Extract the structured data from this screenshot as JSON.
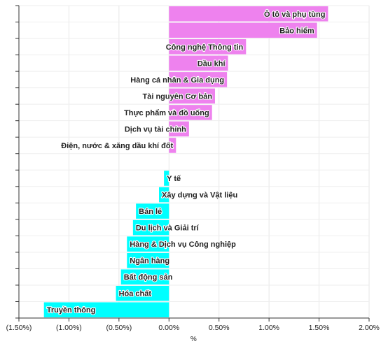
{
  "chart_data": {
    "type": "bar",
    "orientation": "horizontal",
    "xlabel": "%",
    "ylabel": "",
    "xlim": [
      -1.5,
      2.0
    ],
    "x_ticks": [
      -1.5,
      -1.0,
      -0.5,
      0.0,
      0.5,
      1.0,
      1.5,
      2.0
    ],
    "x_tick_labels": [
      "(1.50%)",
      "(1.00%)",
      "(0.50%)",
      "0.00%",
      "0.50%",
      "1.00%",
      "1.50%",
      "2.00%"
    ],
    "grid": true,
    "positive_color": "#ee82ee",
    "negative_color": "#00ffff",
    "categories": [
      "Ô tô và phụ tùng",
      "Bảo hiểm",
      "Công nghệ Thông tin",
      "Dầu khí",
      "Hàng cá nhân & Gia dụng",
      "Tài nguyên Cơ bản",
      "Thực phẩm và đồ uống",
      "Dịch vụ tài chính",
      "Điện, nước & xăng dầu khí đốt",
      "",
      "Y tế",
      "Xây dựng và Vật liệu",
      "Bán lẻ",
      "Du lịch và Giải trí",
      "Hàng & Dịch vụ Công nghiệp",
      "Ngân hàng",
      "Bất động sản",
      "Hóa chất",
      "Truyền thông"
    ],
    "values": [
      1.59,
      1.48,
      0.77,
      0.59,
      0.58,
      0.46,
      0.43,
      0.2,
      0.07,
      0.0,
      -0.05,
      -0.1,
      -0.33,
      -0.36,
      -0.42,
      -0.42,
      -0.48,
      -0.53,
      -1.25
    ]
  }
}
